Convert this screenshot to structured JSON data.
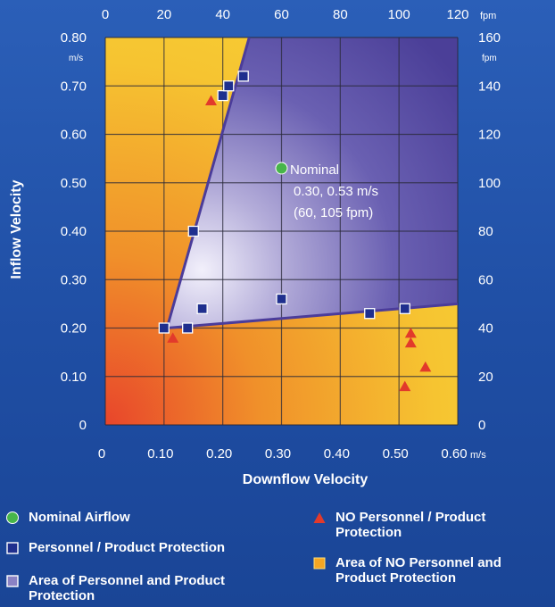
{
  "chart_data": {
    "type": "scatter",
    "xlabel": "Downflow Velocity",
    "ylabel": "Inflow Velocity",
    "xlim": [
      0,
      0.6
    ],
    "ylim": [
      0,
      0.8
    ],
    "x_unit": "m/s",
    "y_unit": "m/s",
    "x_ticks": [
      "0",
      "0.10",
      "0.20",
      "0.30",
      "0.40",
      "0.50",
      "0.60"
    ],
    "y_ticks": [
      "0",
      "0.10",
      "0.20",
      "0.30",
      "0.40",
      "0.50",
      "0.60",
      "0.70",
      "0.80"
    ],
    "top_axis": {
      "unit": "fpm",
      "ticks": [
        "0",
        "20",
        "40",
        "60",
        "80",
        "100",
        "120"
      ]
    },
    "right_axis": {
      "unit": "fpm",
      "ticks": [
        "0",
        "20",
        "40",
        "60",
        "80",
        "100",
        "120",
        "140",
        "160"
      ]
    },
    "grid": true,
    "regions": [
      {
        "name": "Area of Personnel and Product Protection",
        "color": "#5a4fa6",
        "polygon": [
          [
            0.105,
            0.2
          ],
          [
            0.245,
            0.8
          ],
          [
            0.6,
            0.8
          ],
          [
            0.6,
            0.25
          ]
        ]
      },
      {
        "name": "Area of NO Personnel and Product Protection",
        "color": "#f2b12a"
      }
    ],
    "boundary_lines": [
      [
        [
          0.105,
          0.2
        ],
        [
          0.245,
          0.8
        ]
      ],
      [
        [
          0.105,
          0.2
        ],
        [
          0.6,
          0.25
        ]
      ]
    ],
    "series": [
      {
        "name": "Nominal Airflow",
        "marker": "circle",
        "color": "#47b54a",
        "points": [
          [
            0.3,
            0.53
          ]
        ]
      },
      {
        "name": "Personnel / Product Protection",
        "marker": "square",
        "color": "#1f2f8e",
        "points": [
          [
            0.1,
            0.2
          ],
          [
            0.14,
            0.2
          ],
          [
            0.165,
            0.24
          ],
          [
            0.15,
            0.4
          ],
          [
            0.2,
            0.68
          ],
          [
            0.21,
            0.7
          ],
          [
            0.235,
            0.72
          ],
          [
            0.3,
            0.26
          ],
          [
            0.45,
            0.23
          ],
          [
            0.51,
            0.24
          ]
        ]
      },
      {
        "name": "NO Personnel / Product Protection",
        "marker": "triangle",
        "color": "#e23a2b",
        "points": [
          [
            0.115,
            0.18
          ],
          [
            0.18,
            0.67
          ],
          [
            0.52,
            0.19
          ],
          [
            0.52,
            0.17
          ],
          [
            0.545,
            0.12
          ],
          [
            0.51,
            0.08
          ]
        ]
      }
    ],
    "annotation": {
      "lines": [
        "Nominal",
        "0.30, 0.53 m/s",
        "(60, 105 fpm)"
      ]
    }
  },
  "legend": [
    {
      "key": "nominal",
      "label": "Nominal Airflow",
      "marker": "circle",
      "color": "#47b54a"
    },
    {
      "key": "personnel",
      "label": "Personnel / Product Protection",
      "marker": "square",
      "color": "#1f2f8e"
    },
    {
      "key": "area-personnel",
      "label": "Area of Personnel and Product Protection",
      "marker": "square-area",
      "color": "#8a82c4"
    },
    {
      "key": "no-personnel",
      "label": "NO Personnel / Product Protection",
      "marker": "triangle",
      "color": "#e23a2b"
    },
    {
      "key": "area-no",
      "label": "Area of NO Personnel and Product Protection",
      "marker": "square-orange",
      "color": "#f5a623"
    }
  ]
}
